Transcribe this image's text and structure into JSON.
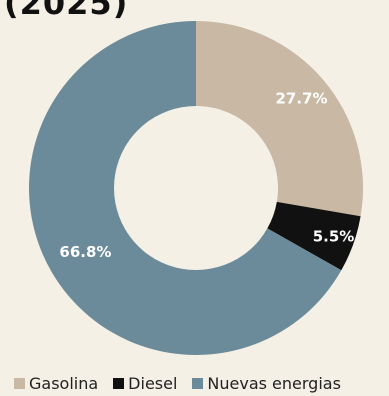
{
  "title_fragment": "(2025)",
  "chart_data": {
    "type": "donut",
    "title": "(2025)",
    "start_angle_deg": 0,
    "direction": "clockwise",
    "slices": [
      {
        "label": "Gasolina",
        "value": 27.7,
        "display": "27.7%",
        "color": "#c8b8a4"
      },
      {
        "label": "Diesel",
        "value": 5.5,
        "display": "5.5%",
        "color": "#111111"
      },
      {
        "label": "Nuevas energias",
        "value": 66.8,
        "display": "66.8%",
        "color": "#6b8b9a"
      }
    ],
    "legend": {
      "position": "bottom",
      "items": [
        "Gasolina",
        "Diesel",
        "Nuevas energias"
      ]
    }
  }
}
